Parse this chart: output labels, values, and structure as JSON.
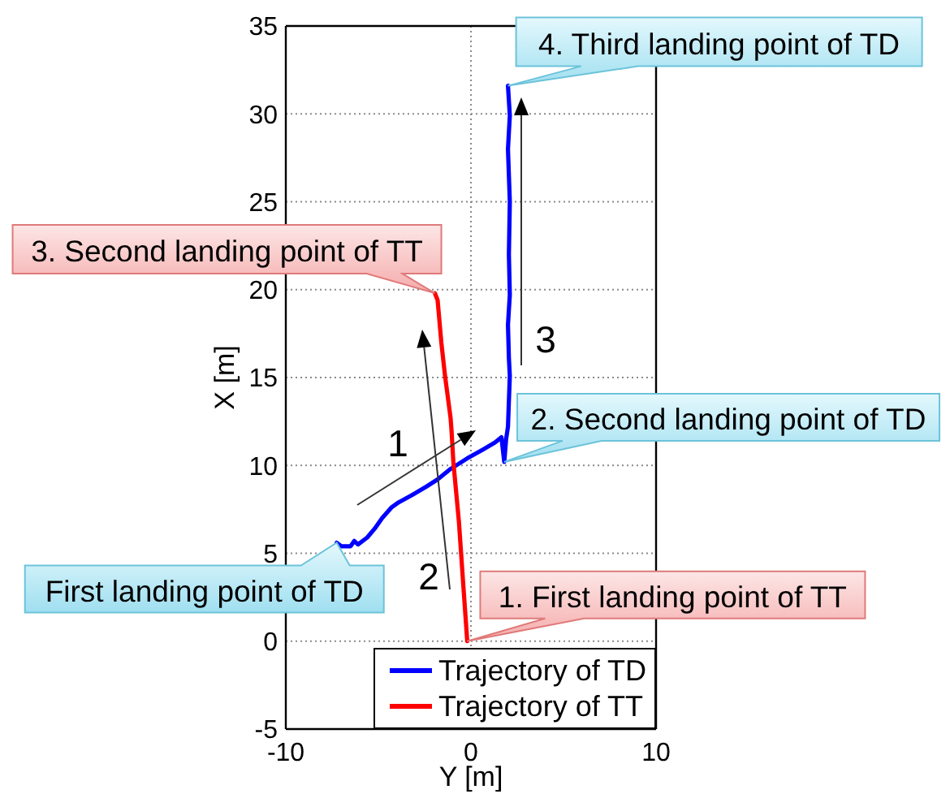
{
  "chart_data": {
    "type": "line",
    "xlabel": "Y [m]",
    "ylabel": "X [m]",
    "xlim": [
      -10,
      10
    ],
    "xticks": [
      -10,
      0,
      10
    ],
    "ylim": [
      -5,
      35
    ],
    "yticks": [
      -5,
      0,
      5,
      10,
      15,
      20,
      25,
      30,
      35
    ],
    "grid": true,
    "legend": "bottom right",
    "series": [
      {
        "name": "Trajectory of TD",
        "color": "#0000ff",
        "x": [
          -7.25,
          -7.0,
          -6.5,
          -6.3,
          -6.1,
          -5.6,
          -5.2,
          -4.8,
          -4.3,
          -3.9,
          -3.2,
          -2.4,
          -1.8,
          -1.1,
          -0.2,
          0.65,
          1.3,
          1.65,
          1.8,
          1.9,
          2.0,
          2.1,
          2.05,
          2.0,
          2.1,
          2.05,
          2.1,
          2.0,
          2.1,
          2.0
        ],
        "values": [
          5.6,
          5.4,
          5.4,
          5.7,
          5.5,
          5.9,
          6.4,
          7.0,
          7.6,
          7.9,
          8.3,
          8.8,
          9.2,
          9.8,
          10.4,
          10.9,
          11.3,
          11.6,
          10.2,
          11.5,
          12.2,
          15.1,
          16.1,
          18.0,
          19.7,
          22.0,
          25.0,
          28.0,
          29.9,
          31.6
        ]
      },
      {
        "name": "Trajectory of TT",
        "color": "#ff0000",
        "x": [
          -0.2,
          -0.4,
          -0.65,
          -0.8,
          -0.95,
          -1.05,
          -1.1,
          -1.2,
          -1.4,
          -1.6,
          -1.8,
          -1.95
        ],
        "values": [
          0,
          3,
          6.8,
          8.5,
          10.2,
          12.0,
          12.7,
          13.5,
          15.1,
          17.0,
          19.4,
          19.8
        ]
      }
    ],
    "annotations": [
      {
        "text": "1. First landing point of TT",
        "x": -0.2,
        "y": 0
      },
      {
        "text": "First landing point of TD",
        "x": -7.25,
        "y": 5.6
      },
      {
        "text": "2. Second landing point of TD",
        "x": 1.8,
        "y": 10.2
      },
      {
        "text": "3. Second landing point of TT",
        "x": -1.95,
        "y": 19.8
      },
      {
        "text": "4. Third landing point of TD",
        "x": 2.0,
        "y": 31.6
      },
      "1",
      "2",
      "3"
    ]
  }
}
